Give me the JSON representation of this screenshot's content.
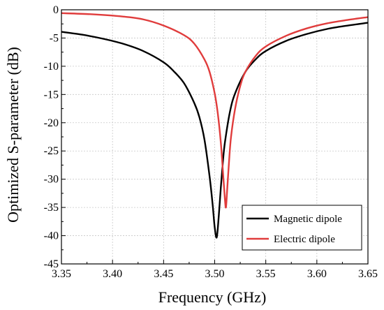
{
  "chart_data": {
    "type": "line",
    "xlabel": "Frequency (GHz)",
    "ylabel": "Optimized S-parameter (dB)",
    "xlim": [
      3.35,
      3.65
    ],
    "ylim": [
      -45,
      0
    ],
    "xticks": [
      "3.35",
      "3.40",
      "3.45",
      "3.50",
      "3.55",
      "3.60",
      "3.65"
    ],
    "yticks": [
      "0",
      "-5",
      "-10",
      "-15",
      "-20",
      "-25",
      "-30",
      "-35",
      "-40",
      "-45"
    ],
    "grid": true,
    "legend": "bottom-right",
    "series": [
      {
        "name": "Magnetic dipole",
        "color": "#000000",
        "x": [
          3.35,
          3.37,
          3.39,
          3.41,
          3.43,
          3.45,
          3.46,
          3.47,
          3.48,
          3.485,
          3.49,
          3.495,
          3.498,
          3.5,
          3.502,
          3.504,
          3.506,
          3.508,
          3.51,
          3.515,
          3.52,
          3.53,
          3.54,
          3.55,
          3.57,
          3.59,
          3.61,
          3.63,
          3.65
        ],
        "values": [
          -3.9,
          -4.4,
          -5.1,
          -6.0,
          -7.3,
          -9.3,
          -10.9,
          -13.0,
          -16.5,
          -19.0,
          -23.0,
          -29.5,
          -34.5,
          -38.5,
          -40.3,
          -36.5,
          -31.5,
          -27.0,
          -23.5,
          -18.0,
          -14.8,
          -11.0,
          -8.8,
          -7.3,
          -5.5,
          -4.3,
          -3.4,
          -2.8,
          -2.3
        ]
      },
      {
        "name": "Electric dipole",
        "color": "#e03c3c",
        "x": [
          3.35,
          3.38,
          3.41,
          3.43,
          3.45,
          3.47,
          3.48,
          3.49,
          3.495,
          3.5,
          3.503,
          3.506,
          3.508,
          3.51,
          3.511,
          3.512,
          3.514,
          3.516,
          3.52,
          3.525,
          3.53,
          3.54,
          3.55,
          3.57,
          3.59,
          3.61,
          3.63,
          3.65
        ],
        "values": [
          -0.6,
          -0.8,
          -1.2,
          -1.7,
          -2.8,
          -4.5,
          -6.0,
          -8.8,
          -11.0,
          -14.8,
          -18.3,
          -23.5,
          -28.5,
          -33.5,
          -35.0,
          -32.5,
          -27.0,
          -22.5,
          -17.5,
          -13.5,
          -11.0,
          -8.2,
          -6.5,
          -4.6,
          -3.3,
          -2.4,
          -1.8,
          -1.3
        ]
      }
    ]
  }
}
